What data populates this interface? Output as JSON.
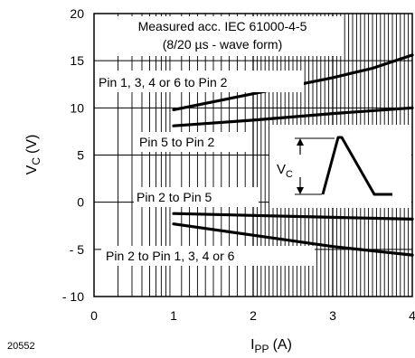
{
  "chart_data": {
    "type": "line",
    "figure_id": "20552",
    "xlabel": {
      "main": "I",
      "sub": "PP",
      "unit": "(A)"
    },
    "ylabel": {
      "main": "V",
      "sub": "C",
      "unit": "(V)"
    },
    "xlim": [
      0,
      4
    ],
    "ylim": [
      -10,
      20
    ],
    "x_ticks": [
      0,
      1,
      2,
      3,
      4
    ],
    "x_tick_labels": [
      "0",
      "1",
      "2",
      "3",
      "4"
    ],
    "y_ticks": [
      20,
      15,
      10,
      5,
      0,
      -5,
      -10
    ],
    "y_tick_labels": [
      "20",
      "15",
      "10",
      "5",
      "0",
      "- 5",
      "- 10"
    ],
    "grid": true,
    "series": [
      {
        "name": "Pin 1, 3, 4 or 6 to Pin 2",
        "x": [
          1,
          2,
          3,
          3.5,
          4
        ],
        "y": [
          9.8,
          11.5,
          13.2,
          14.2,
          15.6
        ]
      },
      {
        "name": "Pin 5 to Pin 2",
        "x": [
          1,
          2,
          3,
          4
        ],
        "y": [
          8.1,
          8.7,
          9.4,
          10.0
        ]
      },
      {
        "name": "Pin 2 to  Pin 5",
        "x": [
          1,
          2,
          3,
          4
        ],
        "y": [
          -1.2,
          -1.4,
          -1.6,
          -1.8
        ]
      },
      {
        "name": "Pin 2 to  Pin 1, 3, 4 or 6",
        "x": [
          1,
          2,
          3,
          4
        ],
        "y": [
          -2.3,
          -3.5,
          -4.7,
          -5.6
        ]
      }
    ],
    "annotations": {
      "header_line1": "Measured acc. IEC 61000-4-5",
      "header_line2": "(8/20 µs - wave form)",
      "inset_label_main": "V",
      "inset_label_sub": "C"
    }
  }
}
